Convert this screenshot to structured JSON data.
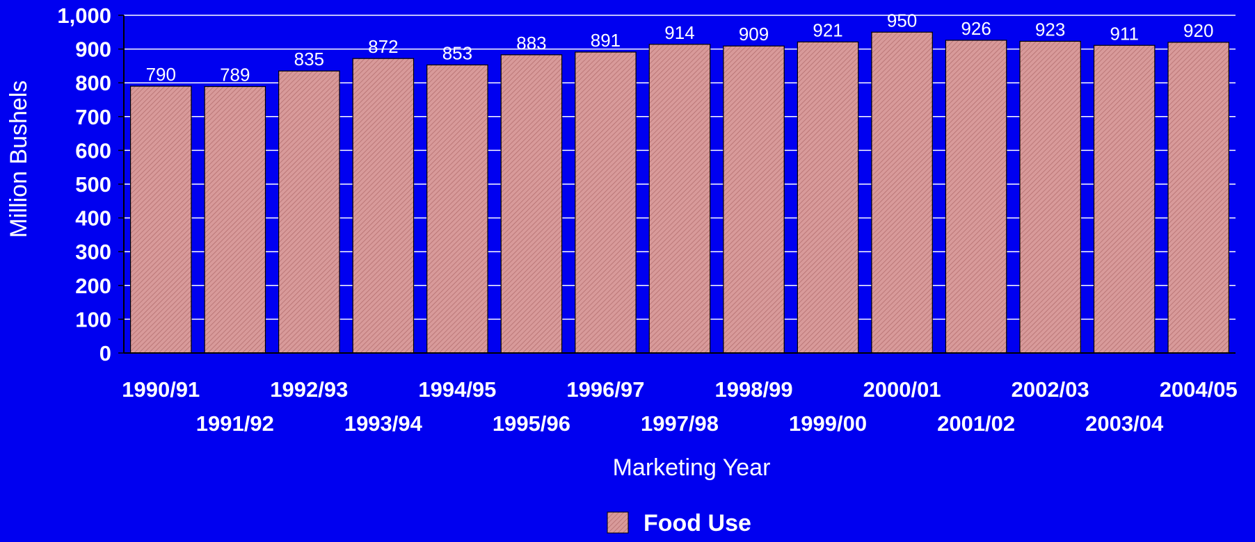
{
  "colors": {
    "background": "#0000f0",
    "bar_fill": "#d89a9a",
    "bar_hatch": "#b06a6a",
    "gridline": "#ffffff",
    "text": "#ffffff"
  },
  "chart_data": {
    "type": "bar",
    "title": "",
    "xlabel": "Marketing Year",
    "ylabel": "Million Bushels",
    "ylim": [
      0,
      1000
    ],
    "yticks": [
      0,
      100,
      200,
      300,
      400,
      500,
      600,
      700,
      800,
      900,
      1000
    ],
    "ytick_labels": [
      "0",
      "100",
      "200",
      "300",
      "400",
      "500",
      "600",
      "700",
      "800",
      "900",
      "1,000"
    ],
    "grid": "horizontal",
    "legend_position": "bottom-center",
    "categories": [
      "1990/91",
      "1991/92",
      "1992/93",
      "1993/94",
      "1994/95",
      "1995/96",
      "1996/97",
      "1997/98",
      "1998/99",
      "1999/00",
      "2000/01",
      "2001/02",
      "2002/03",
      "2003/04",
      "2004/05"
    ],
    "series": [
      {
        "name": "Food Use",
        "values": [
          790,
          789,
          835,
          872,
          853,
          883,
          891,
          914,
          909,
          921,
          950,
          926,
          923,
          911,
          920
        ]
      }
    ]
  }
}
